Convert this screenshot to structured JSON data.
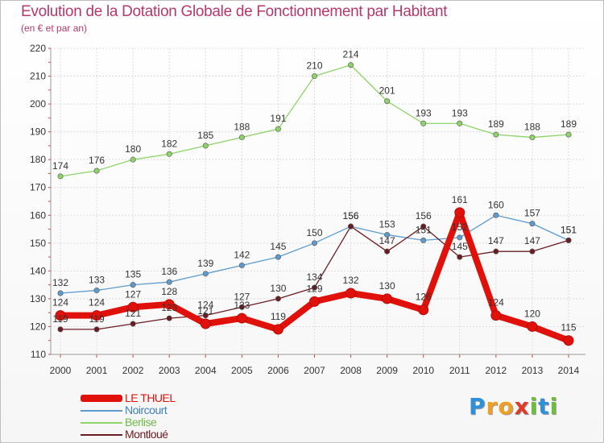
{
  "header": {
    "title": "Evolution de la Dotation Globale de Fonctionnement par Habitant",
    "subtitle": "(en € et par an)"
  },
  "colors": {
    "title": "#b5386b",
    "le_thuel": "#e0110a",
    "noircourt": "#5d9bcd",
    "berlise": "#8ed36a",
    "montloue": "#6b1c22"
  },
  "chart_data": {
    "type": "line",
    "x": [
      "2000",
      "2001",
      "2002",
      "2003",
      "2004",
      "2005",
      "2006",
      "2007",
      "2008",
      "2009",
      "2010",
      "2011",
      "2012",
      "2013",
      "2014"
    ],
    "ylim": [
      110,
      220
    ],
    "yticks": [
      110,
      120,
      130,
      140,
      150,
      160,
      170,
      180,
      190,
      200,
      210,
      220
    ],
    "grid": true,
    "legend": "bottom-left",
    "series": [
      {
        "name": "LE THUEL",
        "key": "le_thuel",
        "values": [
          124,
          124,
          127,
          128,
          121,
          123,
          119,
          129,
          132,
          130,
          126,
          161,
          124,
          120,
          115
        ]
      },
      {
        "name": "Noircourt",
        "key": "noircourt",
        "values": [
          132,
          133,
          135,
          136,
          139,
          142,
          145,
          150,
          156,
          153,
          151,
          152,
          160,
          157,
          151
        ]
      },
      {
        "name": "Berlise",
        "key": "berlise",
        "values": [
          174,
          176,
          180,
          182,
          185,
          188,
          191,
          210,
          214,
          201,
          193,
          193,
          189,
          188,
          189
        ]
      },
      {
        "name": "Montloué",
        "key": "montloue",
        "values": [
          119,
          119,
          121,
          123,
          124,
          127,
          130,
          134,
          156,
          147,
          156,
          145,
          147,
          147,
          151
        ]
      }
    ]
  },
  "legend": {
    "items": [
      "LE THUEL",
      "Noircourt",
      "Berlise",
      "Montloué"
    ]
  },
  "logo": {
    "letters": [
      "P",
      "r",
      "o",
      "x",
      "i",
      "t",
      "i"
    ]
  }
}
